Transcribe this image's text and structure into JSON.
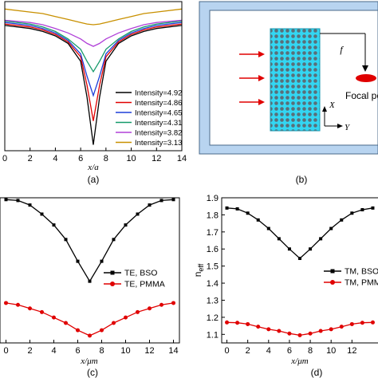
{
  "panel_labels": [
    "(a)",
    "(b)",
    "(c)",
    "(d)"
  ],
  "diagram_b": {
    "focal_length_label": "f",
    "focal_point_label": "Focal po",
    "axis_x_label": "X",
    "axis_y_label": "Y",
    "colors": {
      "frame_fill": "#b8d4f0",
      "frame_inner": "#ffffff",
      "lens": "#33d6f2",
      "arrows": "#e00000",
      "focus": "#e00000"
    }
  },
  "chart_data": [
    {
      "id": "a",
      "type": "line",
      "xlabel": "x/a",
      "ylabel": "",
      "xlim": [
        0,
        14
      ],
      "ylim": [
        0,
        1
      ],
      "xticks": [
        0,
        2,
        4,
        6,
        8,
        10,
        12,
        14
      ],
      "legend_position": "bottom-right",
      "x": [
        0,
        2,
        3,
        4,
        5,
        6,
        6.5,
        7,
        7.5,
        8,
        9,
        10,
        11,
        12,
        14
      ],
      "series": [
        {
          "name": "Intensity=4.92",
          "color": "#000000",
          "values": [
            0.84,
            0.82,
            0.8,
            0.77,
            0.72,
            0.6,
            0.36,
            0.04,
            0.36,
            0.6,
            0.72,
            0.77,
            0.8,
            0.82,
            0.84
          ]
        },
        {
          "name": "Intensity=4.86",
          "color": "#e00000",
          "values": [
            0.85,
            0.83,
            0.81,
            0.78,
            0.73,
            0.63,
            0.44,
            0.2,
            0.44,
            0.63,
            0.73,
            0.78,
            0.81,
            0.83,
            0.85
          ]
        },
        {
          "name": "Intensity=4.65",
          "color": "#1f3fd8",
          "values": [
            0.86,
            0.84,
            0.82,
            0.79,
            0.74,
            0.65,
            0.5,
            0.37,
            0.5,
            0.65,
            0.74,
            0.79,
            0.82,
            0.84,
            0.86
          ]
        },
        {
          "name": "Intensity=4.31",
          "color": "#159a6a",
          "values": [
            0.87,
            0.85,
            0.83,
            0.8,
            0.75,
            0.68,
            0.6,
            0.53,
            0.6,
            0.68,
            0.75,
            0.8,
            0.83,
            0.85,
            0.87
          ]
        },
        {
          "name": "Intensity=3.82",
          "color": "#b040d8",
          "values": [
            0.875,
            0.86,
            0.845,
            0.82,
            0.79,
            0.75,
            0.72,
            0.7,
            0.72,
            0.75,
            0.79,
            0.82,
            0.845,
            0.86,
            0.875
          ]
        },
        {
          "name": "Intensity=3.13",
          "color": "#c89000",
          "values": [
            0.95,
            0.93,
            0.92,
            0.9,
            0.88,
            0.86,
            0.85,
            0.845,
            0.85,
            0.86,
            0.88,
            0.9,
            0.92,
            0.93,
            0.95
          ]
        }
      ]
    },
    {
      "id": "c",
      "type": "line",
      "xlabel": "x/μm",
      "ylabel": "",
      "xlim": [
        -0.5,
        14.5
      ],
      "ylim": [
        1.05,
        1.85
      ],
      "xticks": [
        0,
        2,
        4,
        6,
        8,
        10,
        12,
        14
      ],
      "legend_position": "center-right",
      "x": [
        0,
        1,
        2,
        3,
        4,
        5,
        6,
        7,
        8,
        9,
        10,
        11,
        12,
        13,
        14
      ],
      "series": [
        {
          "name": "TE, BSO",
          "color": "#000000",
          "marker": "square",
          "values": [
            1.84,
            1.835,
            1.81,
            1.76,
            1.7,
            1.62,
            1.5,
            1.39,
            1.5,
            1.62,
            1.7,
            1.76,
            1.81,
            1.835,
            1.84
          ]
        },
        {
          "name": "TE, PMMA",
          "color": "#e00000",
          "marker": "circle",
          "values": [
            1.27,
            1.26,
            1.24,
            1.22,
            1.19,
            1.16,
            1.12,
            1.09,
            1.12,
            1.16,
            1.19,
            1.22,
            1.24,
            1.26,
            1.27
          ]
        }
      ]
    },
    {
      "id": "d",
      "type": "line",
      "xlabel": "x/μm",
      "ylabel": "n_eff",
      "ylabel_main": "n",
      "ylabel_sub": "eff",
      "xlim": [
        -0.5,
        14.5
      ],
      "ylim": [
        1.05,
        1.9
      ],
      "yticks": [
        1.1,
        1.2,
        1.3,
        1.4,
        1.5,
        1.6,
        1.7,
        1.8,
        1.9
      ],
      "xticks": [
        0,
        2,
        4,
        6,
        8,
        10,
        12
      ],
      "legend_position": "center-right",
      "x": [
        0,
        1,
        2,
        3,
        4,
        5,
        6,
        7,
        8,
        9,
        10,
        11,
        12,
        13,
        14
      ],
      "series": [
        {
          "name": "TM, BSO",
          "color": "#000000",
          "marker": "square",
          "values": [
            1.84,
            1.835,
            1.81,
            1.77,
            1.72,
            1.66,
            1.6,
            1.545,
            1.6,
            1.66,
            1.72,
            1.77,
            1.81,
            1.83,
            1.84
          ]
        },
        {
          "name": "TM, PMMA",
          "color": "#e00000",
          "marker": "circle",
          "values": [
            1.17,
            1.168,
            1.16,
            1.145,
            1.13,
            1.12,
            1.105,
            1.095,
            1.105,
            1.12,
            1.13,
            1.145,
            1.16,
            1.168,
            1.17
          ]
        }
      ]
    }
  ]
}
